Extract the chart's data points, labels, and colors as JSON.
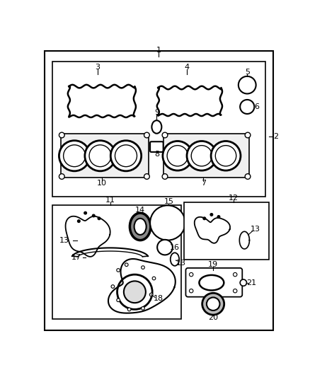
{
  "bg_color": "#ffffff",
  "fig_width": 4.38,
  "fig_height": 5.33,
  "dpi": 100
}
